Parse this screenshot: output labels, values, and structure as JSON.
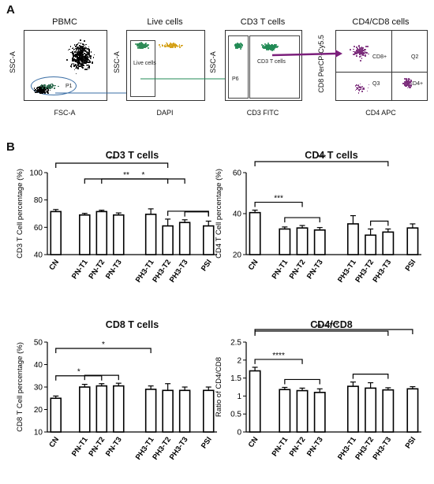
{
  "panel_a_label": "A",
  "panel_b_label": "B",
  "flow": [
    {
      "title": "PBMC",
      "xlabel": "FSC-A",
      "ylabel": "SSC-A",
      "gate": "P1"
    },
    {
      "title": "Live cells",
      "xlabel": "DAPI",
      "ylabel": "SSC-A",
      "gate": "Live cells"
    },
    {
      "title": "CD3 T cells",
      "xlabel": "CD3 FITC",
      "ylabel": "SSC-A",
      "gates": [
        "P6",
        "CD3 T cells"
      ]
    },
    {
      "title": "CD4/CD8 cells",
      "xlabel": "CD4 APC",
      "ylabel": "CD8 PerCP-Cy5.5",
      "quadrants": [
        "CD8+",
        "Q2",
        "Q3",
        "CD4+"
      ]
    }
  ],
  "colors": {
    "bar_stroke": "#000000",
    "bar_fill": "#ffffff",
    "pbmc_dots": "#000000",
    "live_dots": "#2e8b57",
    "dead_dots": "#d4a017",
    "cd3_dots": "#228b55",
    "cd48_dots": "#7b2d7b",
    "arrow": "#7b1f7b"
  },
  "chart_data": [
    {
      "type": "bar",
      "title": "CD3 T cells",
      "ylabel": "CD3 T Cell percentage (%)",
      "categories": [
        "CN",
        "PN-T1",
        "PN-T2",
        "PN-T3",
        "PH3-T1",
        "PH3-T2",
        "PH3-T3",
        "PSI"
      ],
      "values": [
        71.5,
        69,
        71.5,
        69,
        69.5,
        61,
        63.5,
        61
      ],
      "errors": [
        1.5,
        1.2,
        1.0,
        1.5,
        4.0,
        5.0,
        2.0,
        3.5
      ],
      "ylim": [
        40,
        100
      ],
      "yticks": [
        40,
        60,
        80,
        100
      ],
      "significance": [
        {
          "from": 0,
          "to": 5,
          "label": "**"
        },
        {
          "from": 1,
          "to": 5,
          "label": "**"
        },
        {
          "from": 2,
          "to": 6,
          "label": "*"
        },
        {
          "from": 5,
          "to": 7,
          "label": ""
        },
        {
          "from": 6,
          "to": 7,
          "label": ""
        }
      ]
    },
    {
      "type": "bar",
      "title": "CD4 T cells",
      "ylabel": "CD4 T Cell percentage (%)",
      "categories": [
        "CN",
        "PN-T1",
        "PN-T2",
        "PN-T3",
        "PH3-T1",
        "PH3-T2",
        "PH3-T3",
        "PSI"
      ],
      "values": [
        40.5,
        32.5,
        33,
        32,
        35,
        29.5,
        31,
        33
      ],
      "errors": [
        1.2,
        1.0,
        1.2,
        1.2,
        4.0,
        3.0,
        1.5,
        2.0
      ],
      "ylim": [
        20,
        60
      ],
      "yticks": [
        20,
        40,
        60
      ],
      "significance": [
        {
          "from": 0,
          "to": 2,
          "label": "***"
        },
        {
          "from": 0,
          "to": 6,
          "label": "***"
        },
        {
          "from": 1,
          "to": 3,
          "label": ""
        },
        {
          "from": 5,
          "to": 6,
          "label": ""
        }
      ]
    },
    {
      "type": "bar",
      "title": "CD8 T cells",
      "ylabel": "CD8 T Cell percentage (%)",
      "categories": [
        "CN",
        "PN-T1",
        "PN-T2",
        "PN-T3",
        "PH3-T1",
        "PH3-T2",
        "PH3-T3",
        "PSI"
      ],
      "values": [
        25,
        30,
        30.5,
        30.5,
        29,
        28.5,
        28.5,
        28.5
      ],
      "errors": [
        1.0,
        1.2,
        1.0,
        1.2,
        1.5,
        3.0,
        1.5,
        1.5
      ],
      "ylim": [
        10,
        50
      ],
      "yticks": [
        10,
        20,
        30,
        40,
        50
      ],
      "significance": [
        {
          "from": 0,
          "to": 4,
          "label": "*"
        },
        {
          "from": 0,
          "to": 2,
          "label": "*"
        },
        {
          "from": 1,
          "to": 3,
          "label": ""
        }
      ]
    },
    {
      "type": "bar",
      "title": "CD4/CD8",
      "ylabel": "Ratio of CD4/CD8",
      "categories": [
        "CN",
        "PN-T1",
        "PN-T2",
        "PN-T3",
        "PH3-T1",
        "PH3-T2",
        "PH3-T3",
        "PSI"
      ],
      "values": [
        1.7,
        1.18,
        1.15,
        1.1,
        1.27,
        1.22,
        1.17,
        1.2
      ],
      "errors": [
        0.1,
        0.06,
        0.07,
        0.1,
        0.12,
        0.15,
        0.06,
        0.06
      ],
      "ylim": [
        0.0,
        2.5
      ],
      "yticks": [
        0.0,
        0.5,
        1.0,
        1.5,
        2.0,
        2.5
      ],
      "significance": [
        {
          "from": 0,
          "to": 2,
          "label": "****"
        },
        {
          "from": 0,
          "to": 6,
          "label": "****"
        },
        {
          "from": 0,
          "to": 7,
          "label": "***"
        },
        {
          "from": 1,
          "to": 3,
          "label": ""
        },
        {
          "from": 4,
          "to": 6,
          "label": ""
        }
      ]
    }
  ]
}
